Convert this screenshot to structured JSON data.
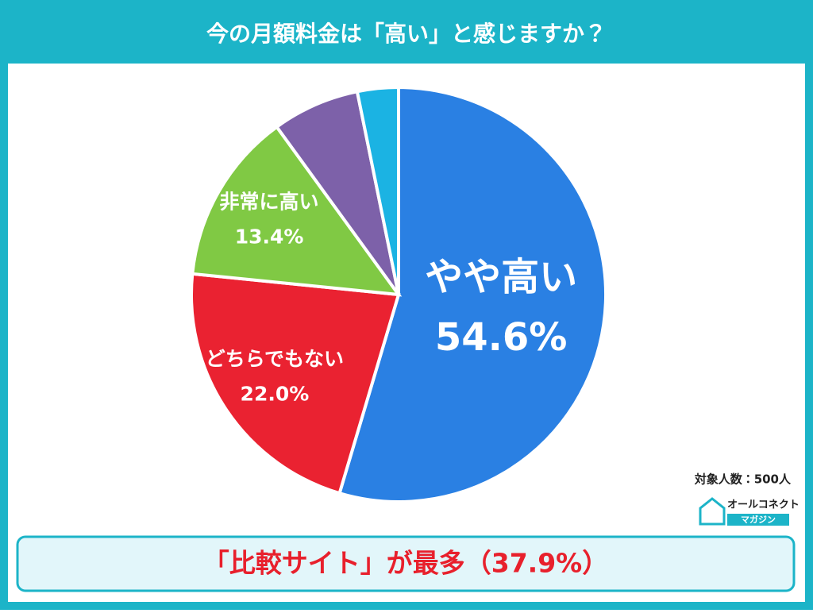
{
  "chart_data": {
    "type": "pie",
    "title": "今の月額料金は「高い」と感じますか？",
    "categories": [
      "やや高い",
      "どちらでもない",
      "非常に高い",
      null,
      null
    ],
    "values": [
      54.6,
      22.0,
      13.4,
      6.8,
      3.2
    ],
    "value_labels": [
      "54.6%",
      "22.0%",
      "13.4%",
      null,
      null
    ],
    "colors": [
      "#2a80e3",
      "#ea2231",
      "#80c944",
      "#7d61a9",
      "#1bb3e3"
    ],
    "annotation": "対象人数：500人",
    "summary": "「比較サイト」が最多（37.9%）"
  },
  "logo": {
    "name": "オールコネクト",
    "sub": "マガジン"
  }
}
